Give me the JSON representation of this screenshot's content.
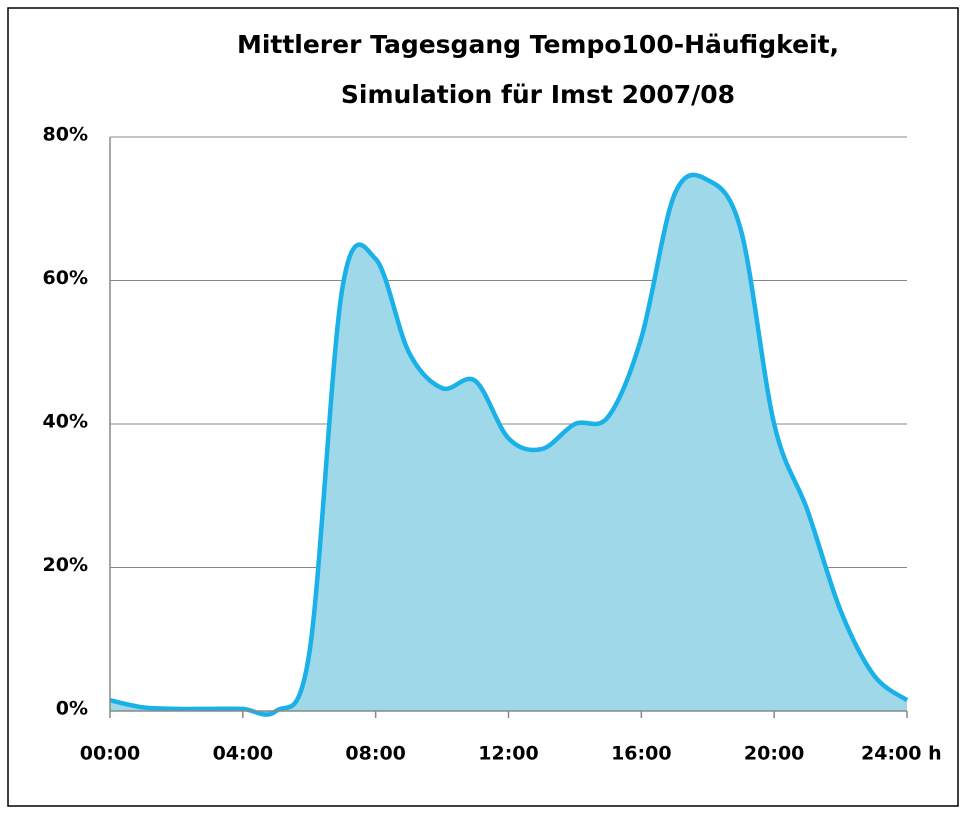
{
  "chart_data": {
    "type": "area",
    "title": [
      "Mittlerer Tagesgang Tempo100-Häufigkeit,",
      "Simulation für Imst 2007/08"
    ],
    "x": [
      0,
      1,
      2,
      3,
      4,
      5,
      6,
      7,
      8,
      9,
      10,
      11,
      12,
      13,
      14,
      15,
      16,
      17,
      18,
      19,
      20,
      21,
      22,
      23,
      24
    ],
    "series": [
      {
        "name": "Tempo100-Häufigkeit",
        "color": "#1ab0e8",
        "fill": "#9fd8e8",
        "values": [
          1.5,
          0.5,
          0.3,
          0.3,
          0.3,
          0,
          8,
          59,
          63,
          50,
          45,
          46,
          38,
          36.5,
          40,
          41,
          52,
          72,
          74,
          67,
          40,
          28,
          14,
          5,
          1.5
        ]
      }
    ],
    "xlim": [
      0,
      24
    ],
    "xticks": [
      {
        "value": 0,
        "label": "00:00"
      },
      {
        "value": 4,
        "label": "04:00"
      },
      {
        "value": 8,
        "label": "08:00"
      },
      {
        "value": 12,
        "label": "12:00"
      },
      {
        "value": 16,
        "label": "16:00"
      },
      {
        "value": 20,
        "label": "20:00"
      },
      {
        "value": 24,
        "label": "24:00 h"
      }
    ],
    "ylim": [
      0,
      80
    ],
    "yticks": [
      {
        "value": 0,
        "label": "0%"
      },
      {
        "value": 20,
        "label": "20%"
      },
      {
        "value": 40,
        "label": "40%"
      },
      {
        "value": 60,
        "label": "60%"
      },
      {
        "value": 80,
        "label": "80%"
      }
    ],
    "grid": true
  }
}
